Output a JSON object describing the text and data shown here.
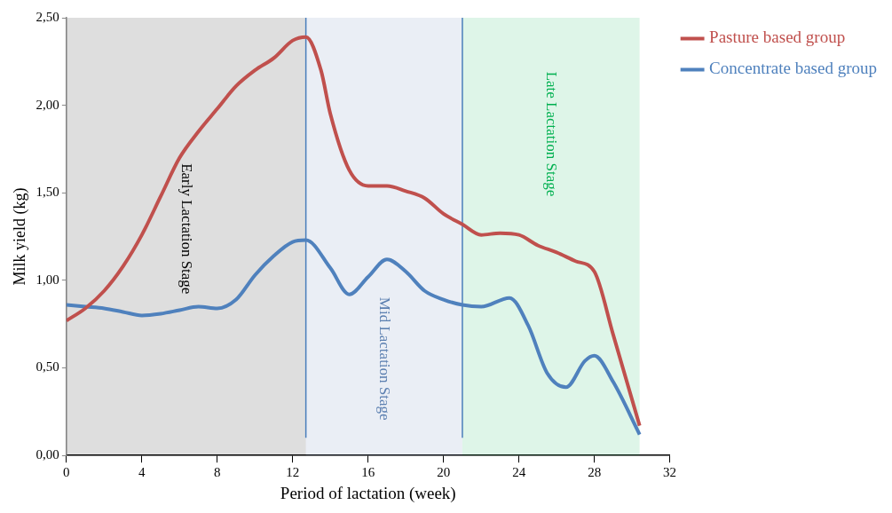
{
  "chart_data": {
    "type": "line",
    "xlabel": "Period of lactation (week)",
    "ylabel": "Milk yield (kg)",
    "xlim": [
      0,
      32
    ],
    "xticks": [
      0,
      4,
      8,
      12,
      16,
      20,
      24,
      28,
      32
    ],
    "ylim": [
      0,
      2.5
    ],
    "yticks": [
      {
        "value": 0,
        "label": "0,00"
      },
      {
        "value": 0.5,
        "label": "0,50"
      },
      {
        "value": 1,
        "label": "1,00"
      },
      {
        "value": 1.5,
        "label": "1,50"
      },
      {
        "value": 2,
        "label": "2,00"
      },
      {
        "value": 2.5,
        "label": "2,50"
      }
    ],
    "grid": false,
    "legend": "top right",
    "marker": "none",
    "series": [
      {
        "name": "Pasture based group",
        "color": "#c0504d",
        "x": [
          0,
          1,
          2,
          3,
          4,
          5,
          6,
          7,
          8,
          9,
          10,
          11,
          12,
          12.7,
          13.5,
          14,
          15,
          16,
          17,
          18,
          19,
          20,
          21,
          22,
          23,
          24,
          25,
          26,
          27,
          28,
          29,
          30.4
        ],
        "values": [
          0.77,
          0.84,
          0.94,
          1.08,
          1.26,
          1.48,
          1.7,
          1.85,
          1.98,
          2.11,
          2.2,
          2.27,
          2.37,
          2.39,
          2.2,
          1.95,
          1.63,
          1.54,
          1.54,
          1.51,
          1.47,
          1.38,
          1.32,
          1.26,
          1.27,
          1.26,
          1.2,
          1.16,
          1.11,
          1.05,
          0.69,
          0.17
        ]
      },
      {
        "name": "Concentrate based group",
        "color": "#4f81bd",
        "x": [
          0,
          1,
          2,
          3,
          4,
          5,
          6,
          7,
          8,
          9,
          10,
          11,
          12,
          12.7,
          14,
          15,
          16,
          17,
          18,
          19,
          20,
          21,
          22,
          23.5,
          24.5,
          25.5,
          26.5,
          27.5,
          28,
          29,
          30.4
        ],
        "values": [
          0.86,
          0.85,
          0.84,
          0.82,
          0.8,
          0.81,
          0.83,
          0.85,
          0.84,
          0.89,
          1.03,
          1.14,
          1.22,
          1.23,
          1.07,
          0.92,
          1.02,
          1.12,
          1.05,
          0.94,
          0.89,
          0.86,
          0.85,
          0.9,
          0.74,
          0.47,
          0.39,
          0.54,
          0.57,
          0.42,
          0.12
        ]
      }
    ],
    "ref_lines": [
      {
        "axis": "x",
        "value": 12.7,
        "color": "#4a7ebb"
      },
      {
        "axis": "x",
        "value": 21,
        "color": "#4a7ebb"
      }
    ],
    "bands": [
      {
        "axis": "x",
        "from": 0,
        "to": 12.7,
        "label": "Early Lactation Stage",
        "color": "#000000"
      },
      {
        "axis": "x",
        "from": 12.7,
        "to": 21,
        "label": "Mid Lactation Stage",
        "color": "#5b7fb0"
      },
      {
        "axis": "x",
        "from": 21,
        "to": 30.4,
        "label": "Late Lactation Stage",
        "color": "#00b050"
      }
    ]
  }
}
